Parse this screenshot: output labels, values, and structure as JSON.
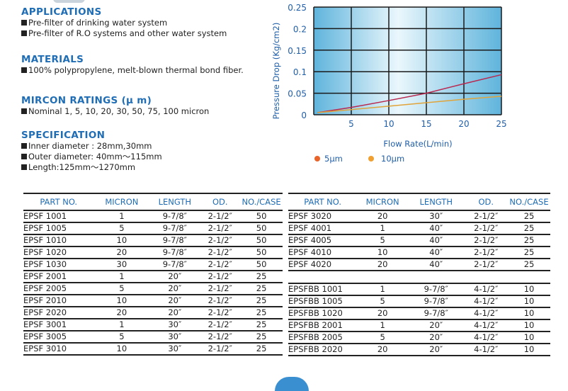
{
  "applications": {
    "title": "APPLICATIONS",
    "items": [
      "Pre-filter of drinking water system",
      "Pre-filter of R.O systems and other water system"
    ]
  },
  "materials": {
    "title": "MATERIALS",
    "items": [
      "100% polypropylene, melt-blown thermal bond fiber."
    ]
  },
  "micron": {
    "title": "MIRCON RATINGS (μ m)",
    "items": [
      "Nominal  1, 5, 10, 20, 30, 50, 75, 100 micron"
    ]
  },
  "spec": {
    "title": "SPECIFICATION",
    "items": [
      "Inner diameter : 28mm,30mm",
      "Outer diameter: 40mm～115mm",
      "Length:125mm～1270mm"
    ]
  },
  "chart_data": {
    "type": "line",
    "xlabel": "Flow Rate(L/min)",
    "ylabel": "Pressure Drop (Kg/cm2)",
    "xlim": [
      0,
      25
    ],
    "ylim": [
      0,
      0.25
    ],
    "xticks": [
      "5",
      "10",
      "15",
      "20",
      "25"
    ],
    "yticks": [
      "0",
      "0.05",
      "0.1",
      "0.15",
      "0.2",
      "0.25"
    ],
    "grid": true,
    "legend": "bottom",
    "x": [
      0.5,
      5,
      10,
      15,
      20,
      25
    ],
    "series": [
      {
        "name": "5μm",
        "color": "#b8284f",
        "legend_color": "#e8642a",
        "values": [
          0.005,
          0.017,
          0.033,
          0.05,
          0.072,
          0.093
        ]
      },
      {
        "name": "10μm",
        "color": "#e0a43a",
        "legend_color": "#f0a030",
        "values": [
          0.005,
          0.012,
          0.02,
          0.028,
          0.036,
          0.043
        ]
      }
    ]
  },
  "table": {
    "headers": [
      "PART NO.",
      "MICRON",
      "LENGTH",
      "OD.",
      "NO./CASE"
    ],
    "left": [
      [
        "EPSF 1001",
        "1",
        "9-7/8″",
        "2-1/2″",
        "50"
      ],
      [
        "EPSF 1005",
        "5",
        "9-7/8″",
        "2-1/2″",
        "50"
      ],
      [
        "EPSF 1010",
        "10",
        "9-7/8″",
        "2-1/2″",
        "50"
      ],
      [
        "EPSF 1020",
        "20",
        "9-7/8″",
        "2-1/2″",
        "50"
      ],
      [
        "EPSF 1030",
        "30",
        "9-7/8″",
        "2-1/2″",
        "50"
      ],
      [
        "EPSF 2001",
        "1",
        "20″",
        "2-1/2″",
        "25"
      ],
      [
        "EPSF 2005",
        "5",
        "20″",
        "2-1/2″",
        "25"
      ],
      [
        "EPSF 2010",
        "10",
        "20″",
        "2-1/2″",
        "25"
      ],
      [
        "EPSF 2020",
        "20",
        "20″",
        "2-1/2″",
        "25"
      ],
      [
        "EPSF 3001",
        "1",
        "30″",
        "2-1/2″",
        "25"
      ],
      [
        "EPSF 3005",
        "5",
        "30″",
        "2-1/2″",
        "25"
      ],
      [
        "EPSF 3010",
        "10",
        "30″",
        "2-1/2″",
        "25"
      ]
    ],
    "right": [
      [
        "EPSF 3020",
        "20",
        "30″",
        "2-1/2″",
        "25"
      ],
      [
        "EPSF 4001",
        "1",
        "40″",
        "2-1/2″",
        "25"
      ],
      [
        "EPSF 4005",
        "5",
        "40″",
        "2-1/2″",
        "25"
      ],
      [
        "EPSF 4010",
        "10",
        "40″",
        "2-1/2″",
        "25"
      ],
      [
        "EPSF 4020",
        "20",
        "40″",
        "2-1/2″",
        "25"
      ],
      [],
      [
        "EPSFBB 1001",
        "1",
        "9-7/8″",
        "4-1/2″",
        "10"
      ],
      [
        "EPSFBB 1005",
        "5",
        "9-7/8″",
        "4-1/2″",
        "10"
      ],
      [
        "EPSFBB 1020",
        "20",
        "9-7/8″",
        "4-1/2″",
        "10"
      ],
      [
        "EPSFBB 2001",
        "1",
        "20″",
        "4-1/2″",
        "10"
      ],
      [
        "EPSFBB 2005",
        "5",
        "20″",
        "4-1/2″",
        "10"
      ],
      [
        "EPSFBB 2020",
        "20",
        "20″",
        "4-1/2″",
        "10"
      ]
    ]
  }
}
